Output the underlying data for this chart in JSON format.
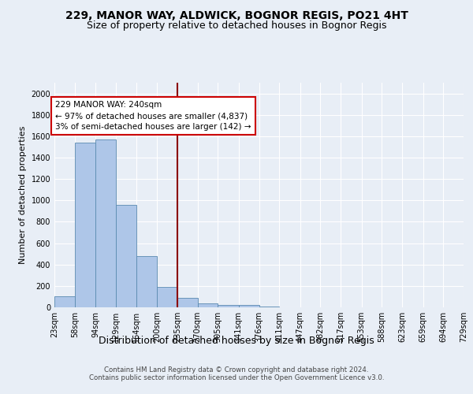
{
  "title": "229, MANOR WAY, ALDWICK, BOGNOR REGIS, PO21 4HT",
  "subtitle": "Size of property relative to detached houses in Bognor Regis",
  "xlabel": "Distribution of detached houses by size in Bognor Regis",
  "ylabel": "Number of detached properties",
  "footer_line1": "Contains HM Land Registry data © Crown copyright and database right 2024.",
  "footer_line2": "Contains public sector information licensed under the Open Government Licence v3.0.",
  "bar_edges": [
    23,
    58,
    94,
    129,
    164,
    200,
    235,
    270,
    305,
    341,
    376,
    411,
    447,
    482,
    517,
    553,
    588,
    623,
    659,
    694,
    729
  ],
  "bar_heights": [
    100,
    1540,
    1570,
    960,
    480,
    190,
    85,
    40,
    25,
    20,
    5,
    0,
    0,
    0,
    0,
    0,
    0,
    0,
    0,
    0
  ],
  "bar_color": "#aec6e8",
  "bar_edge_color": "#5a8ab0",
  "vline_x": 235,
  "vline_color": "#8b0000",
  "annotation_text": "229 MANOR WAY: 240sqm\n← 97% of detached houses are smaller (4,837)\n3% of semi-detached houses are larger (142) →",
  "annotation_box_color": "#ffffff",
  "annotation_box_edge": "#cc0000",
  "ylim": [
    0,
    2100
  ],
  "yticks": [
    0,
    200,
    400,
    600,
    800,
    1000,
    1200,
    1400,
    1600,
    1800,
    2000
  ],
  "bg_color": "#e8eef6",
  "plot_bg_color": "#e8eef6",
  "grid_color": "#ffffff",
  "title_fontsize": 10,
  "subtitle_fontsize": 9,
  "tick_label_fontsize": 7,
  "ylabel_fontsize": 8,
  "xlabel_fontsize": 9
}
